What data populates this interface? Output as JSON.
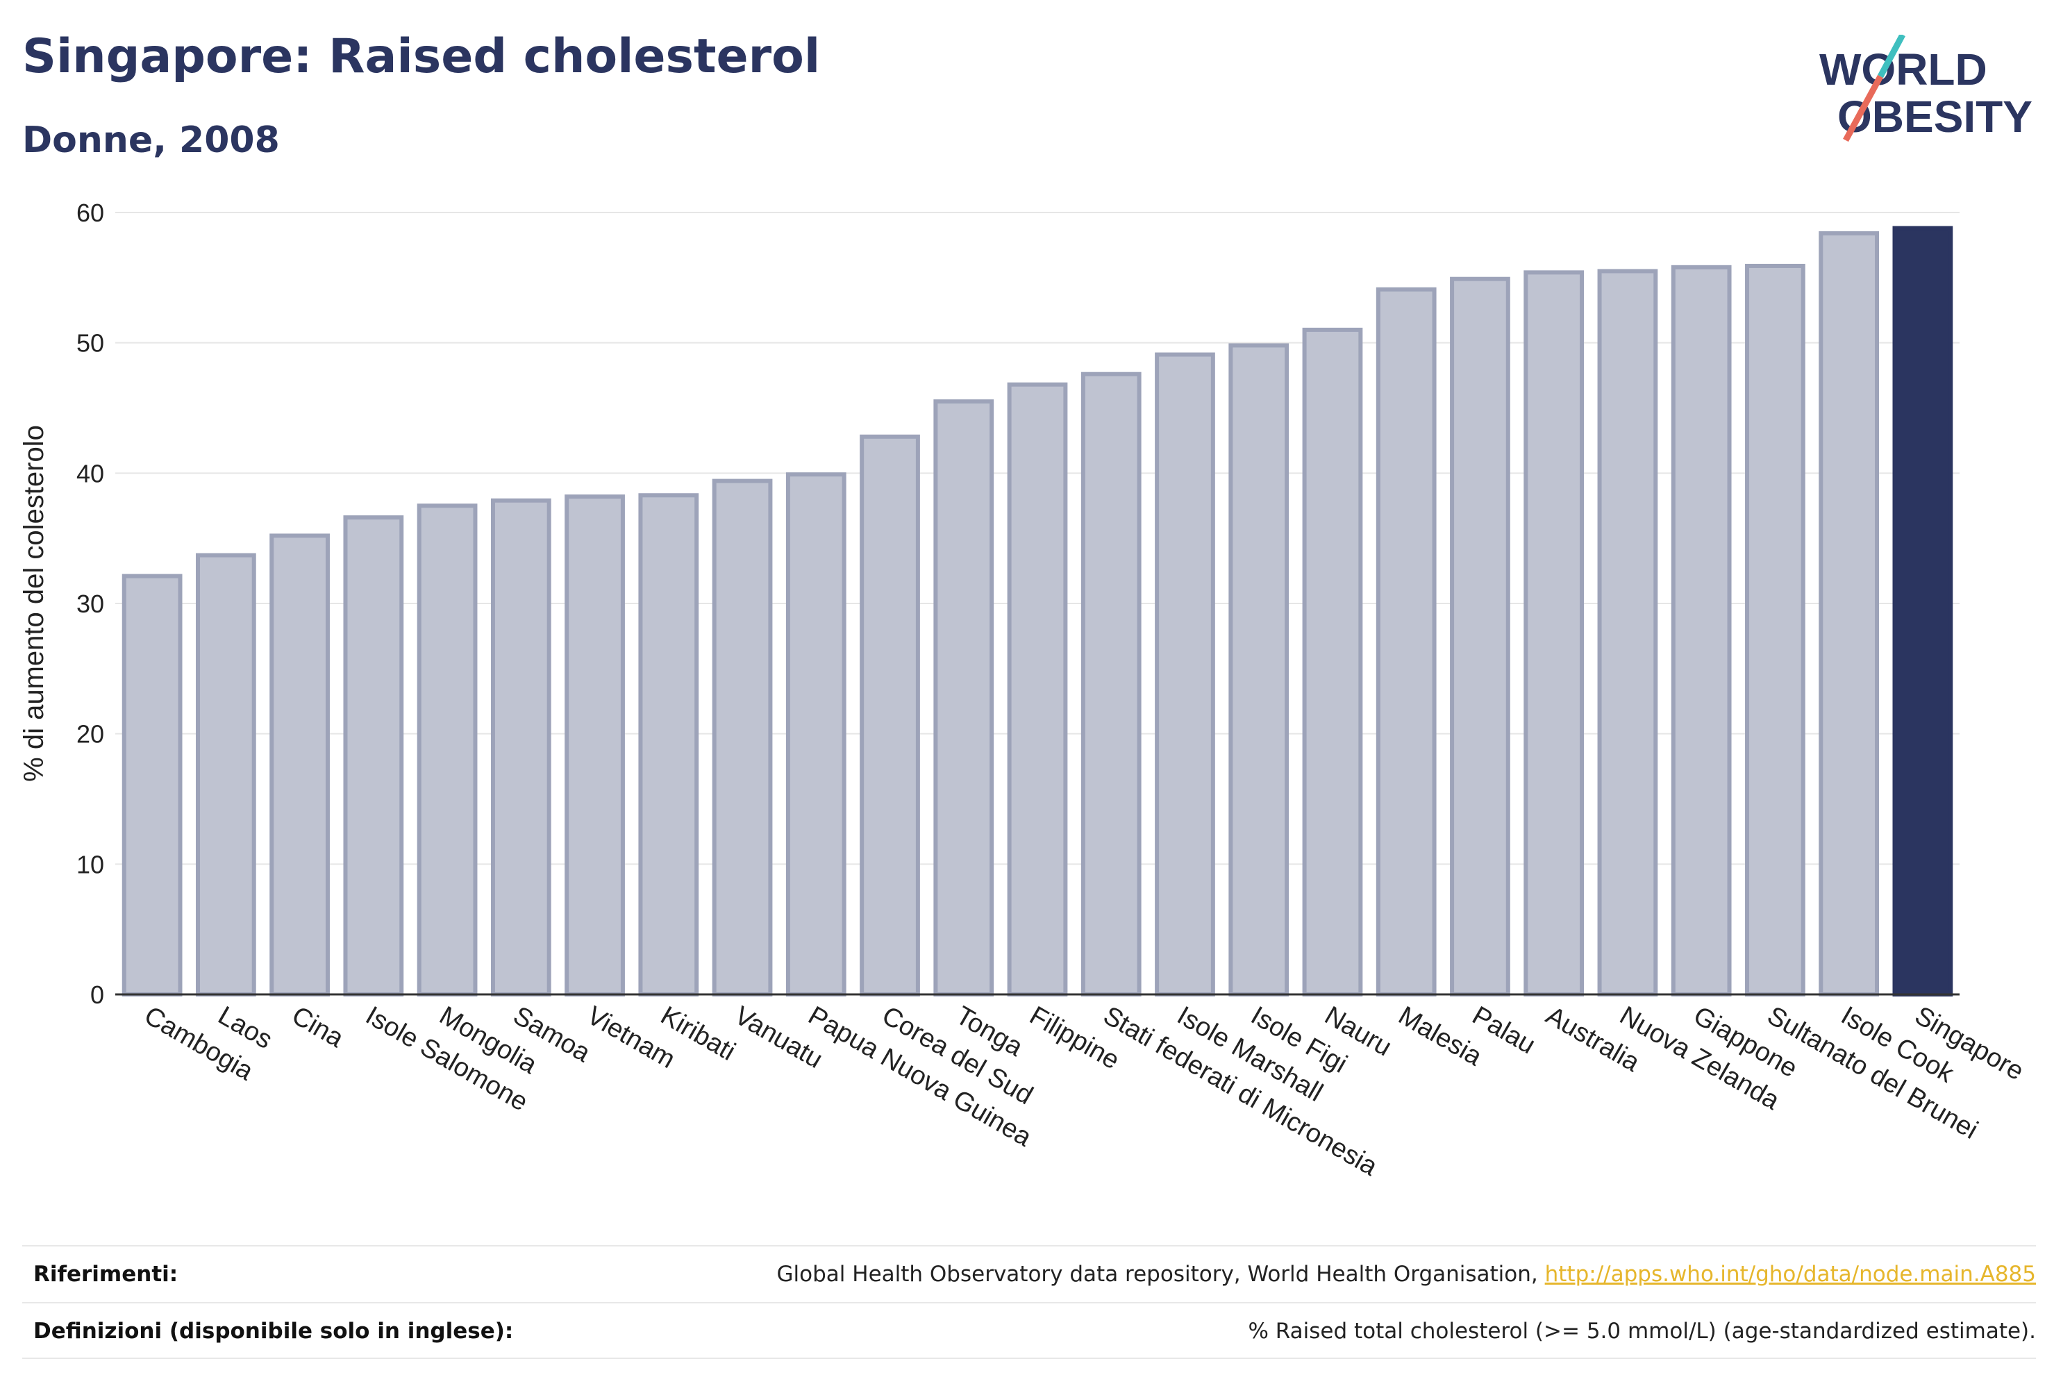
{
  "header": {
    "title": "Singapore: Raised cholesterol",
    "subtitle": "Donne, 2008"
  },
  "logo": {
    "line1": "WORLD",
    "line2": "OBESITY",
    "colors": {
      "text": "#2b3560",
      "teal": "#3fbfbf",
      "coral": "#e86a5a"
    }
  },
  "chart_data": {
    "type": "bar",
    "ylabel": "% di aumento del colesterolo",
    "ylim": [
      0,
      60
    ],
    "yticks": [
      0,
      10,
      20,
      30,
      40,
      50,
      60
    ],
    "grid": true,
    "categories": [
      "Cambogia",
      "Laos",
      "Cina",
      "Isole Salomone",
      "Mongolia",
      "Samoa",
      "Vietnam",
      "Kiribati",
      "Vanuatu",
      "Papua Nuova Guinea",
      "Corea del Sud",
      "Tonga",
      "Filippine",
      "Stati federati di Micronesia",
      "Isole Marshall",
      "Isole Figi",
      "Nauru",
      "Malesia",
      "Palau",
      "Australia",
      "Nuova Zelanda",
      "Giappone",
      "Sultanato del Brunei",
      "Isole Cook",
      "Singapore"
    ],
    "values": [
      32.1,
      33.7,
      35.2,
      36.6,
      37.5,
      37.9,
      38.2,
      38.3,
      39.4,
      39.9,
      42.8,
      45.5,
      46.8,
      47.6,
      49.1,
      49.8,
      51.0,
      54.1,
      54.9,
      55.4,
      55.5,
      55.8,
      55.9,
      58.4,
      58.8
    ],
    "highlight": "Singapore",
    "colors": {
      "bar": "#bfc3d1",
      "bar_edge": "#9da3b9",
      "highlight": "#2b3560"
    }
  },
  "footer": {
    "references_label": "Riferimenti:",
    "references_text": "Global Health Observatory data repository, World Health Organisation, ",
    "references_link": "http://apps.who.int/gho/data/node.main.A885",
    "definitions_label": "Definizioni (disponibile solo in inglese):",
    "definitions_text": "% Raised total cholesterol (>= 5.0 mmol/L) (age-standardized estimate)."
  }
}
